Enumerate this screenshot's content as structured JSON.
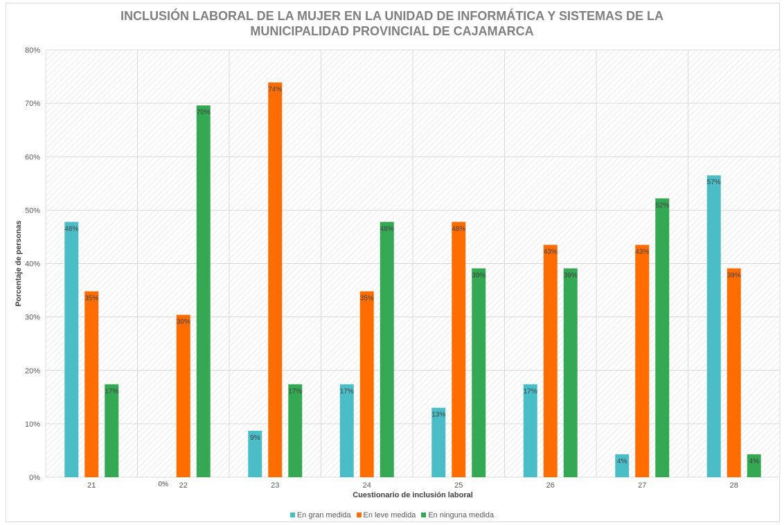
{
  "chart_data": {
    "type": "bar",
    "title_lines": [
      "INCLUSIÓN LABORAL DE LA MUJER EN LA UNIDAD DE INFORMÁTICA Y SISTEMAS DE LA",
      "MUNICIPALIDAD PROVINCIAL DE CAJAMARCA"
    ],
    "xlabel": "Cuestionario de inclusión laboral",
    "ylabel": "Porcentaje de personas",
    "categories": [
      "21",
      "22",
      "23",
      "24",
      "25",
      "26",
      "27",
      "28"
    ],
    "ylim": [
      0,
      80
    ],
    "yticks": [
      0,
      10,
      20,
      30,
      40,
      50,
      60,
      70,
      80
    ],
    "ytick_labels": [
      "0%",
      "10%",
      "20%",
      "30%",
      "40%",
      "50%",
      "60%",
      "70%",
      "80%"
    ],
    "grid": true,
    "legend_position": "bottom",
    "series": [
      {
        "name": "En gran medida",
        "color": "#4bbdc7",
        "values": [
          47.8,
          0,
          8.7,
          17.4,
          13.0,
          17.4,
          4.3,
          56.5
        ],
        "labels": [
          "48%",
          "0%",
          "9%",
          "17%",
          "13%",
          "17%",
          "4%",
          "57%"
        ]
      },
      {
        "name": "En leve medida",
        "color": "#ff6d00",
        "values": [
          34.8,
          30.4,
          73.9,
          34.8,
          47.8,
          43.5,
          43.5,
          39.1
        ],
        "labels": [
          "35%",
          "30%",
          "74%",
          "35%",
          "48%",
          "43%",
          "43%",
          "39%"
        ]
      },
      {
        "name": "En ninguna medida",
        "color": "#35a853",
        "values": [
          17.4,
          69.6,
          17.4,
          47.8,
          39.1,
          39.1,
          52.2,
          4.3
        ],
        "labels": [
          "17%",
          "70%",
          "17%",
          "48%",
          "39%",
          "39%",
          "52%",
          "4%"
        ]
      }
    ]
  }
}
